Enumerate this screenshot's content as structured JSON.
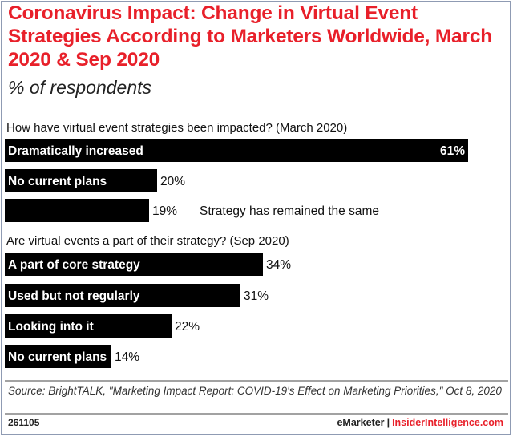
{
  "chart_data": {
    "type": "bar",
    "title": "Coronavirus Impact: Change in Virtual Event Strategies According to Marketers Worldwide, March 2020 & Sep 2020",
    "subtitle": "% of respondents",
    "xmax": 61,
    "groups": [
      {
        "question": "How have virtual event strategies been impacted? (March 2020)",
        "bars": [
          {
            "label": "Dramatically increased",
            "value": 61,
            "value_label": "61%"
          },
          {
            "label": "No current plans",
            "value": 20,
            "value_label": "20%"
          },
          {
            "label": "",
            "value": 19,
            "value_label": "19%",
            "outside_label": "Strategy has remained the same"
          }
        ]
      },
      {
        "question": "Are virtual events a part of their strategy? (Sep 2020)",
        "bars": [
          {
            "label": "A part of core strategy",
            "value": 34,
            "value_label": "34%"
          },
          {
            "label": "Used but not regularly",
            "value": 31,
            "value_label": "31%"
          },
          {
            "label": "Looking into it",
            "value": 22,
            "value_label": "22%"
          },
          {
            "label": "No current plans",
            "value": 14,
            "value_label": "14%"
          }
        ]
      }
    ]
  },
  "source": "Source: BrightTALK, \"Marketing Impact Report: COVID-19's Effect on Marketing Priorities,\" Oct 8, 2020",
  "footer": {
    "chart_id": "261105",
    "brand": "eMarketer",
    "separator": "|",
    "site": "InsiderIntelligence.com"
  },
  "colors": {
    "title": "#e8202a",
    "bar": "#000000",
    "bar_label": "#ffffff"
  }
}
